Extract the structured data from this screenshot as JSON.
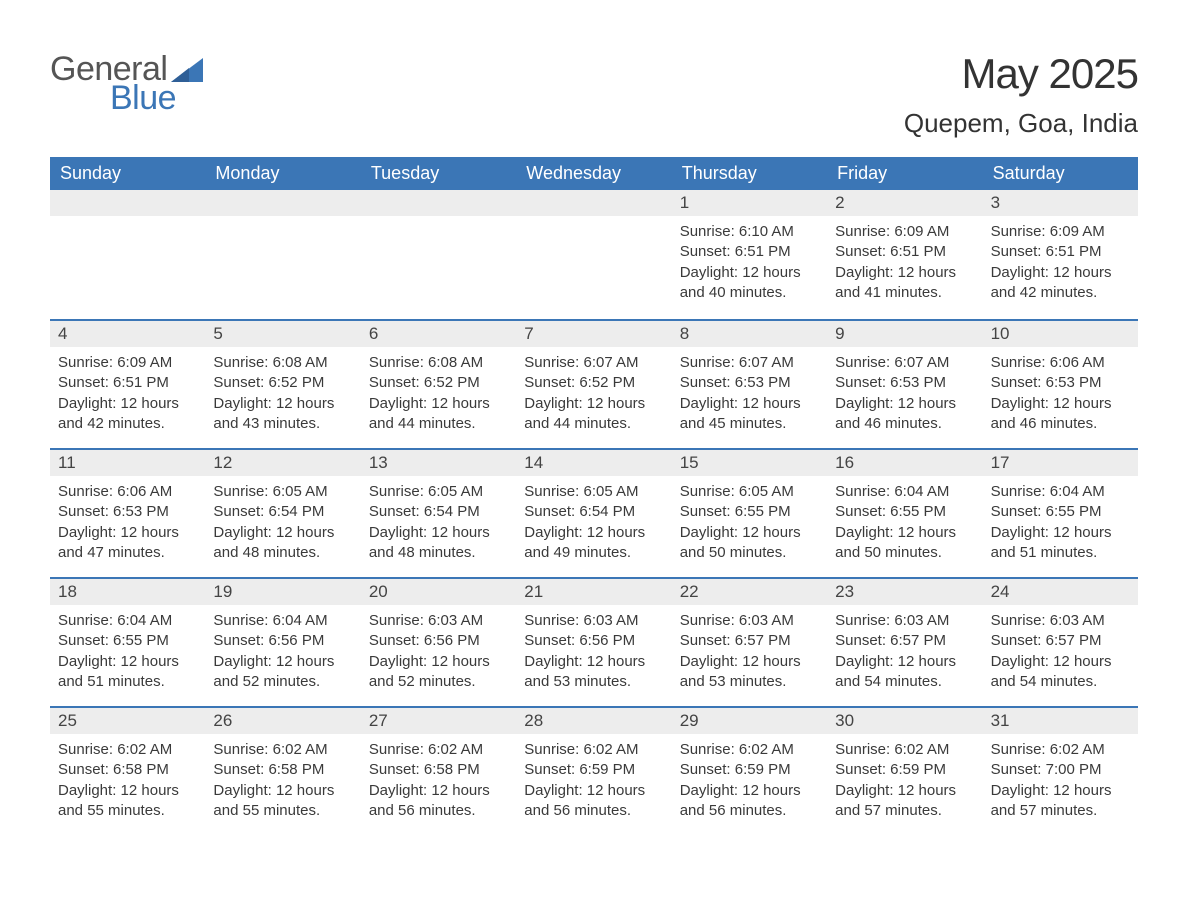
{
  "logo": {
    "text1": "General",
    "text2": "Blue",
    "color_gray": "#555555",
    "color_blue": "#3b76b6"
  },
  "header": {
    "month_title": "May 2025",
    "location": "Quepem, Goa, India"
  },
  "colors": {
    "header_bg": "#3b76b6",
    "header_text": "#ffffff",
    "daynum_bg": "#ededed",
    "daynum_border": "#3b76b6",
    "body_text": "#3a3a3a",
    "page_bg": "#ffffff"
  },
  "weekdays": [
    "Sunday",
    "Monday",
    "Tuesday",
    "Wednesday",
    "Thursday",
    "Friday",
    "Saturday"
  ],
  "weeks": [
    [
      null,
      null,
      null,
      null,
      {
        "n": "1",
        "sunrise": "6:10 AM",
        "sunset": "6:51 PM",
        "daylight": "12 hours and 40 minutes."
      },
      {
        "n": "2",
        "sunrise": "6:09 AM",
        "sunset": "6:51 PM",
        "daylight": "12 hours and 41 minutes."
      },
      {
        "n": "3",
        "sunrise": "6:09 AM",
        "sunset": "6:51 PM",
        "daylight": "12 hours and 42 minutes."
      }
    ],
    [
      {
        "n": "4",
        "sunrise": "6:09 AM",
        "sunset": "6:51 PM",
        "daylight": "12 hours and 42 minutes."
      },
      {
        "n": "5",
        "sunrise": "6:08 AM",
        "sunset": "6:52 PM",
        "daylight": "12 hours and 43 minutes."
      },
      {
        "n": "6",
        "sunrise": "6:08 AM",
        "sunset": "6:52 PM",
        "daylight": "12 hours and 44 minutes."
      },
      {
        "n": "7",
        "sunrise": "6:07 AM",
        "sunset": "6:52 PM",
        "daylight": "12 hours and 44 minutes."
      },
      {
        "n": "8",
        "sunrise": "6:07 AM",
        "sunset": "6:53 PM",
        "daylight": "12 hours and 45 minutes."
      },
      {
        "n": "9",
        "sunrise": "6:07 AM",
        "sunset": "6:53 PM",
        "daylight": "12 hours and 46 minutes."
      },
      {
        "n": "10",
        "sunrise": "6:06 AM",
        "sunset": "6:53 PM",
        "daylight": "12 hours and 46 minutes."
      }
    ],
    [
      {
        "n": "11",
        "sunrise": "6:06 AM",
        "sunset": "6:53 PM",
        "daylight": "12 hours and 47 minutes."
      },
      {
        "n": "12",
        "sunrise": "6:05 AM",
        "sunset": "6:54 PM",
        "daylight": "12 hours and 48 minutes."
      },
      {
        "n": "13",
        "sunrise": "6:05 AM",
        "sunset": "6:54 PM",
        "daylight": "12 hours and 48 minutes."
      },
      {
        "n": "14",
        "sunrise": "6:05 AM",
        "sunset": "6:54 PM",
        "daylight": "12 hours and 49 minutes."
      },
      {
        "n": "15",
        "sunrise": "6:05 AM",
        "sunset": "6:55 PM",
        "daylight": "12 hours and 50 minutes."
      },
      {
        "n": "16",
        "sunrise": "6:04 AM",
        "sunset": "6:55 PM",
        "daylight": "12 hours and 50 minutes."
      },
      {
        "n": "17",
        "sunrise": "6:04 AM",
        "sunset": "6:55 PM",
        "daylight": "12 hours and 51 minutes."
      }
    ],
    [
      {
        "n": "18",
        "sunrise": "6:04 AM",
        "sunset": "6:55 PM",
        "daylight": "12 hours and 51 minutes."
      },
      {
        "n": "19",
        "sunrise": "6:04 AM",
        "sunset": "6:56 PM",
        "daylight": "12 hours and 52 minutes."
      },
      {
        "n": "20",
        "sunrise": "6:03 AM",
        "sunset": "6:56 PM",
        "daylight": "12 hours and 52 minutes."
      },
      {
        "n": "21",
        "sunrise": "6:03 AM",
        "sunset": "6:56 PM",
        "daylight": "12 hours and 53 minutes."
      },
      {
        "n": "22",
        "sunrise": "6:03 AM",
        "sunset": "6:57 PM",
        "daylight": "12 hours and 53 minutes."
      },
      {
        "n": "23",
        "sunrise": "6:03 AM",
        "sunset": "6:57 PM",
        "daylight": "12 hours and 54 minutes."
      },
      {
        "n": "24",
        "sunrise": "6:03 AM",
        "sunset": "6:57 PM",
        "daylight": "12 hours and 54 minutes."
      }
    ],
    [
      {
        "n": "25",
        "sunrise": "6:02 AM",
        "sunset": "6:58 PM",
        "daylight": "12 hours and 55 minutes."
      },
      {
        "n": "26",
        "sunrise": "6:02 AM",
        "sunset": "6:58 PM",
        "daylight": "12 hours and 55 minutes."
      },
      {
        "n": "27",
        "sunrise": "6:02 AM",
        "sunset": "6:58 PM",
        "daylight": "12 hours and 56 minutes."
      },
      {
        "n": "28",
        "sunrise": "6:02 AM",
        "sunset": "6:59 PM",
        "daylight": "12 hours and 56 minutes."
      },
      {
        "n": "29",
        "sunrise": "6:02 AM",
        "sunset": "6:59 PM",
        "daylight": "12 hours and 56 minutes."
      },
      {
        "n": "30",
        "sunrise": "6:02 AM",
        "sunset": "6:59 PM",
        "daylight": "12 hours and 57 minutes."
      },
      {
        "n": "31",
        "sunrise": "6:02 AM",
        "sunset": "7:00 PM",
        "daylight": "12 hours and 57 minutes."
      }
    ]
  ],
  "labels": {
    "sunrise": "Sunrise: ",
    "sunset": "Sunset: ",
    "daylight": "Daylight: "
  }
}
